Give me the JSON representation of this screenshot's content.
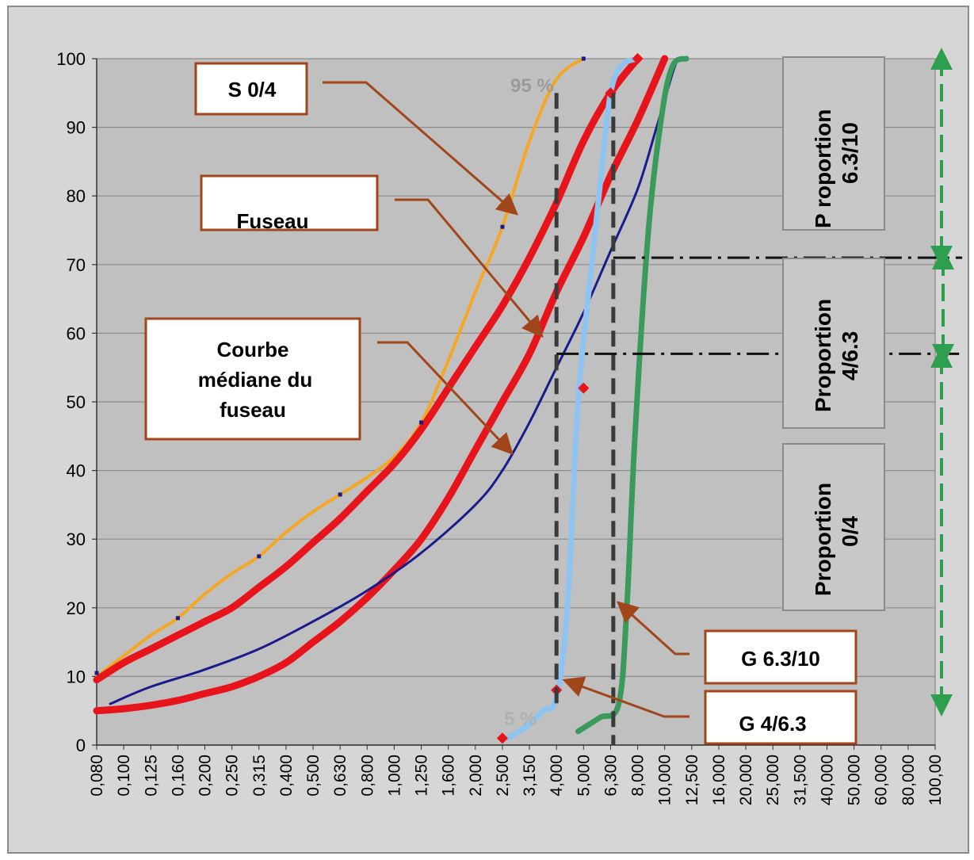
{
  "chart_data": {
    "type": "line",
    "title": "",
    "xlabel": "",
    "ylabel": "",
    "x_scale": "categorical (logarithmic sieve sizes)",
    "ylim": [
      0,
      100
    ],
    "grid": "horizontal",
    "categories": [
      "0,080",
      "0,100",
      "0,125",
      "0,160",
      "0,200",
      "0,250",
      "0,315",
      "0,400",
      "0,500",
      "0,630",
      "0,800",
      "1,000",
      "1,250",
      "1,600",
      "2,000",
      "2,500",
      "3,150",
      "4,000",
      "5,000",
      "6,300",
      "8,000",
      "10,000",
      "12,500",
      "16,000",
      "20,000",
      "25,000",
      "31,500",
      "40,000",
      "50,000",
      "60,000",
      "80,000",
      "100,00"
    ],
    "y_ticks": [
      "0",
      "10",
      "20",
      "30",
      "40",
      "50",
      "60",
      "70",
      "80",
      "90",
      "100"
    ],
    "series": [
      {
        "label_ref": "S 0/4",
        "color": "#f5a623",
        "points": [
          [
            0,
            10
          ],
          [
            1,
            13
          ],
          [
            2,
            16
          ],
          [
            3,
            18.5
          ],
          [
            4,
            22
          ],
          [
            5,
            25
          ],
          [
            6,
            27.5
          ],
          [
            7,
            31
          ],
          [
            8,
            34
          ],
          [
            9,
            36.5
          ],
          [
            10,
            39
          ],
          [
            11,
            42
          ],
          [
            12,
            47
          ],
          [
            13,
            56
          ],
          [
            14,
            66
          ],
          [
            15,
            75.5
          ],
          [
            16,
            88
          ],
          [
            17,
            97
          ],
          [
            18,
            100
          ]
        ]
      },
      {
        "label_ref": "Fuseau (upper bound)",
        "color": "#e8141b",
        "points": [
          [
            0,
            9.5
          ],
          [
            1,
            12
          ],
          [
            2,
            14
          ],
          [
            3,
            16
          ],
          [
            4,
            18
          ],
          [
            5,
            20
          ],
          [
            6,
            23
          ],
          [
            7,
            26
          ],
          [
            8,
            29.5
          ],
          [
            9,
            33
          ],
          [
            10,
            37
          ],
          [
            11,
            41
          ],
          [
            12,
            46
          ],
          [
            13,
            52
          ],
          [
            14,
            58
          ],
          [
            15,
            64
          ],
          [
            16,
            71
          ],
          [
            17,
            79
          ],
          [
            18,
            88
          ],
          [
            19,
            95
          ],
          [
            20,
            100
          ]
        ]
      },
      {
        "label_ref": "Fuseau (lower bound)",
        "color": "#e8141b",
        "points": [
          [
            0,
            5
          ],
          [
            1,
            5.3
          ],
          [
            2,
            5.8
          ],
          [
            3,
            6.5
          ],
          [
            4,
            7.5
          ],
          [
            5,
            8.5
          ],
          [
            6,
            10
          ],
          [
            7,
            12
          ],
          [
            8,
            15
          ],
          [
            9,
            18
          ],
          [
            10,
            21.5
          ],
          [
            11,
            25.5
          ],
          [
            12,
            30
          ],
          [
            13,
            36
          ],
          [
            14,
            43
          ],
          [
            15,
            50
          ],
          [
            16,
            57
          ],
          [
            17,
            66
          ],
          [
            18,
            74
          ],
          [
            19,
            83
          ],
          [
            20,
            91
          ],
          [
            21,
            100
          ]
        ]
      },
      {
        "label_ref": "Courbe médiane du fuseau",
        "color": "#1a1a8c",
        "points": [
          [
            0.5,
            6
          ],
          [
            2,
            8.5
          ],
          [
            4,
            11
          ],
          [
            6,
            14
          ],
          [
            8,
            18
          ],
          [
            10,
            22.5
          ],
          [
            12,
            28
          ],
          [
            14,
            35
          ],
          [
            15,
            40
          ],
          [
            16,
            47
          ],
          [
            17,
            55
          ],
          [
            18,
            63
          ],
          [
            19,
            72
          ],
          [
            20,
            81
          ],
          [
            20.7,
            90
          ],
          [
            21.3,
            98
          ],
          [
            21.5,
            100
          ]
        ]
      },
      {
        "label_ref": "G 4/6.3",
        "color": "#8fc3f0",
        "points": [
          [
            15.2,
            1
          ],
          [
            16,
            3
          ],
          [
            16.5,
            5
          ],
          [
            17,
            7
          ],
          [
            17.4,
            20
          ],
          [
            17.8,
            50
          ],
          [
            18.3,
            70
          ],
          [
            18.7,
            85
          ],
          [
            19,
            95
          ],
          [
            19.4,
            99
          ],
          [
            20,
            100
          ]
        ]
      },
      {
        "label_ref": "G 6.3/10",
        "color": "#3a9a5c",
        "points": [
          [
            17.8,
            2
          ],
          [
            18.6,
            4
          ],
          [
            19.3,
            6
          ],
          [
            19.6,
            20
          ],
          [
            19.9,
            45
          ],
          [
            20.4,
            75
          ],
          [
            20.9,
            92
          ],
          [
            21.3,
            99
          ],
          [
            21.8,
            100
          ]
        ]
      }
    ],
    "red_markers": [
      [
        15,
        1
      ],
      [
        17,
        8
      ],
      [
        18,
        52
      ],
      [
        19,
        95
      ],
      [
        20,
        100
      ]
    ],
    "s04_markers": [
      [
        0,
        10.5
      ],
      [
        3,
        18.5
      ],
      [
        6,
        27.5
      ],
      [
        9,
        36.5
      ],
      [
        12,
        47
      ],
      [
        15,
        75.5
      ],
      [
        18,
        100
      ]
    ],
    "reference_lines": {
      "vertical_dashed": [
        [
          17,
          95,
          5
        ],
        [
          19.1,
          95,
          0
        ]
      ],
      "horizontal_dash_dot": [
        [
          17,
          57,
          32
        ],
        [
          19.1,
          71,
          32
        ]
      ],
      "annotations": [
        "95 %",
        "5 %"
      ]
    }
  },
  "labels": {
    "s04": "S 0/4",
    "fuseau": "Fuseau",
    "courbe_l1": "Courbe",
    "courbe_l2": "médiane du",
    "courbe_l3": "fuseau",
    "g63": "G 6.3/10",
    "g4": "G 4/6.3",
    "pct95": "95 %",
    "pct5": "5 %",
    "prop_top_l1": "P roportion",
    "prop_top_l2": "6.3/10",
    "prop_mid_l1": "Proportion",
    "prop_mid_l2": "4/6.3",
    "prop_bot_l1": "Proportion",
    "prop_bot_l2": "0/4"
  },
  "colors": {
    "plot_bg": "#c0c0c0",
    "frame_bg": "#d6d6d6",
    "arrow": "#a0461a",
    "proportion_arrow": "#2e9e4f"
  }
}
